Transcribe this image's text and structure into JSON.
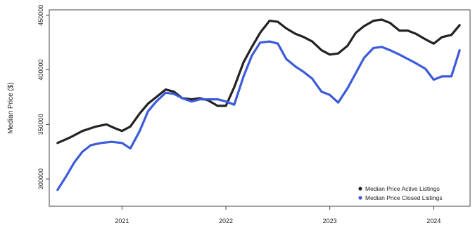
{
  "chart_data": {
    "type": "line",
    "title": "",
    "xlabel": "",
    "ylabel": "Median Price ($)",
    "xlim": [
      2020.3,
      2024.35
    ],
    "ylim": [
      275000,
      455000
    ],
    "x_ticks": [
      {
        "value": 2021,
        "label": "2021"
      },
      {
        "value": 2022,
        "label": "2022"
      },
      {
        "value": 2023,
        "label": "2023"
      },
      {
        "value": 2024,
        "label": "2024"
      }
    ],
    "y_ticks": [
      {
        "value": 300000,
        "label": "300000"
      },
      {
        "value": 350000,
        "label": "350000"
      },
      {
        "value": 400000,
        "label": "400000"
      },
      {
        "value": 450000,
        "label": "450000"
      }
    ],
    "grid": false,
    "legend_position": "bottom-right",
    "series": [
      {
        "name": "Median Price Active Listings",
        "color": "#222222",
        "points": [
          [
            2020.38,
            333000
          ],
          [
            2020.5,
            338000
          ],
          [
            2020.62,
            344000
          ],
          [
            2020.75,
            348000
          ],
          [
            2020.85,
            350000
          ],
          [
            2020.92,
            347000
          ],
          [
            2021.0,
            344000
          ],
          [
            2021.08,
            348000
          ],
          [
            2021.17,
            360000
          ],
          [
            2021.25,
            369000
          ],
          [
            2021.33,
            375000
          ],
          [
            2021.42,
            382000
          ],
          [
            2021.5,
            380000
          ],
          [
            2021.58,
            374000
          ],
          [
            2021.67,
            373000
          ],
          [
            2021.75,
            374000
          ],
          [
            2021.83,
            372000
          ],
          [
            2021.92,
            367000
          ],
          [
            2022.0,
            367000
          ],
          [
            2022.08,
            384000
          ],
          [
            2022.17,
            407000
          ],
          [
            2022.25,
            421000
          ],
          [
            2022.33,
            434000
          ],
          [
            2022.42,
            445000
          ],
          [
            2022.5,
            444000
          ],
          [
            2022.58,
            438000
          ],
          [
            2022.67,
            433000
          ],
          [
            2022.75,
            430000
          ],
          [
            2022.83,
            426000
          ],
          [
            2022.92,
            418000
          ],
          [
            2023.0,
            414000
          ],
          [
            2023.08,
            415000
          ],
          [
            2023.17,
            422000
          ],
          [
            2023.25,
            434000
          ],
          [
            2023.33,
            440000
          ],
          [
            2023.42,
            445000
          ],
          [
            2023.5,
            446000
          ],
          [
            2023.58,
            443000
          ],
          [
            2023.67,
            436000
          ],
          [
            2023.75,
            436000
          ],
          [
            2023.83,
            433000
          ],
          [
            2023.92,
            428000
          ],
          [
            2024.0,
            424000
          ],
          [
            2024.08,
            430000
          ],
          [
            2024.17,
            432000
          ],
          [
            2024.25,
            441000
          ]
        ]
      },
      {
        "name": "Median Price Closed Listings",
        "color": "#3b5bdb",
        "points": [
          [
            2020.38,
            290000
          ],
          [
            2020.46,
            302000
          ],
          [
            2020.54,
            315000
          ],
          [
            2020.62,
            325000
          ],
          [
            2020.7,
            331000
          ],
          [
            2020.8,
            333000
          ],
          [
            2020.9,
            334000
          ],
          [
            2021.0,
            333000
          ],
          [
            2021.08,
            328000
          ],
          [
            2021.17,
            344000
          ],
          [
            2021.25,
            362000
          ],
          [
            2021.33,
            371000
          ],
          [
            2021.42,
            379000
          ],
          [
            2021.5,
            378000
          ],
          [
            2021.58,
            374000
          ],
          [
            2021.67,
            371000
          ],
          [
            2021.75,
            373000
          ],
          [
            2021.83,
            373000
          ],
          [
            2021.92,
            373000
          ],
          [
            2022.0,
            371000
          ],
          [
            2022.08,
            368000
          ],
          [
            2022.17,
            394000
          ],
          [
            2022.25,
            413000
          ],
          [
            2022.33,
            425000
          ],
          [
            2022.42,
            426000
          ],
          [
            2022.5,
            424000
          ],
          [
            2022.58,
            410000
          ],
          [
            2022.67,
            403000
          ],
          [
            2022.75,
            398000
          ],
          [
            2022.83,
            392000
          ],
          [
            2022.92,
            380000
          ],
          [
            2023.0,
            377000
          ],
          [
            2023.08,
            370000
          ],
          [
            2023.17,
            383000
          ],
          [
            2023.25,
            397000
          ],
          [
            2023.33,
            411000
          ],
          [
            2023.42,
            420000
          ],
          [
            2023.5,
            421000
          ],
          [
            2023.58,
            418000
          ],
          [
            2023.67,
            414000
          ],
          [
            2023.75,
            410000
          ],
          [
            2023.83,
            406000
          ],
          [
            2023.92,
            401000
          ],
          [
            2024.0,
            391000
          ],
          [
            2024.08,
            394000
          ],
          [
            2024.17,
            394000
          ],
          [
            2024.25,
            418000
          ]
        ]
      }
    ]
  }
}
